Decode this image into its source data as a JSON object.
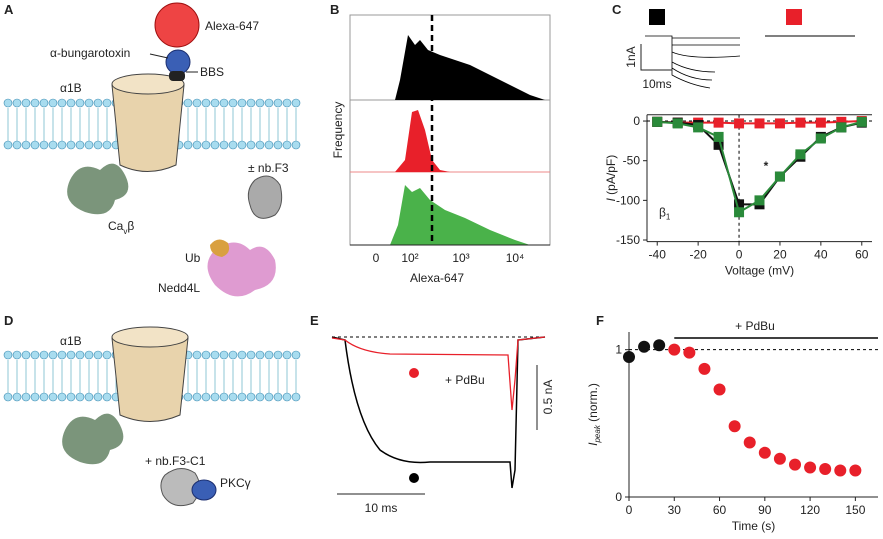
{
  "panel_labels": [
    "A",
    "B",
    "C",
    "D",
    "E",
    "F"
  ],
  "panel_a": {
    "dye": "Alexa-647",
    "toxin": "α-bungarotoxin",
    "tag": "BBS",
    "channel": "α1B",
    "nanobody": "± nb.F3",
    "ubiquitin": "Ub",
    "ligase": "Nedd4L",
    "cavb": [
      "Ca",
      "v",
      "β"
    ]
  },
  "panel_b": {
    "ylabel": "Frequency",
    "xlabel": "Alexa-647",
    "xticks": [
      "0",
      "10²",
      "10³",
      "10⁴"
    ]
  },
  "panel_c_inset": {
    "current_scale": "1nA",
    "time_scale": "10ms"
  },
  "panel_d": {
    "channel": "α1B",
    "nanobody": "+ nb.F3-C1",
    "kinase": "PKCγ"
  },
  "panel_e": {
    "treatment": "+ PdBu",
    "current_scale": "0.5 nA",
    "time_scale": "10 ms"
  },
  "chart_data": [
    {
      "type": "line",
      "xlabel": "Voltage (mV)",
      "ylabel": [
        "I",
        " (pA/pF)"
      ],
      "annotation": [
        "β",
        "1"
      ],
      "marker": "*",
      "x": [
        -40,
        -30,
        -20,
        -10,
        0,
        10,
        20,
        30,
        40,
        50,
        60
      ],
      "series": [
        {
          "color": "#e8202a",
          "values": [
            -1,
            -2,
            -2,
            -2,
            -3,
            -3,
            -3,
            -2,
            -2,
            -1,
            0
          ]
        },
        {
          "color": "#111111",
          "values": [
            -1,
            -2,
            -5,
            -30,
            -105,
            -105,
            -70,
            -45,
            -20,
            -8,
            -2
          ]
        },
        {
          "color": "#2a8a3a",
          "values": [
            -1,
            -3,
            -8,
            -20,
            -115,
            -100,
            -70,
            -42,
            -22,
            -8,
            -1
          ]
        }
      ],
      "xlim": [
        -45,
        65
      ],
      "xticks": [
        -40,
        -20,
        0,
        20,
        40,
        60
      ],
      "ylim": [
        -152,
        8
      ],
      "yticks": [
        0,
        -50,
        -100,
        -150
      ]
    },
    {
      "type": "scatter",
      "xlabel": "Time (s)",
      "ylabel": [
        "I",
        "peak",
        " (norm.)"
      ],
      "annotation": "+ PdBu",
      "series": [
        {
          "color": "#111111",
          "x": [
            0,
            10,
            20
          ],
          "values": [
            0.95,
            1.02,
            1.03
          ]
        },
        {
          "color": "#e8202a",
          "x": [
            30,
            40,
            50,
            60,
            70,
            80,
            90,
            100,
            110,
            120,
            130,
            140,
            150
          ],
          "values": [
            1.0,
            0.98,
            0.87,
            0.73,
            0.48,
            0.37,
            0.3,
            0.26,
            0.22,
            0.2,
            0.19,
            0.18,
            0.18
          ]
        }
      ],
      "xlim": [
        0,
        165
      ],
      "xticks": [
        0,
        30,
        60,
        90,
        120,
        150
      ],
      "ylim": [
        0,
        1.12
      ],
      "yticks": [
        0,
        1
      ]
    }
  ]
}
